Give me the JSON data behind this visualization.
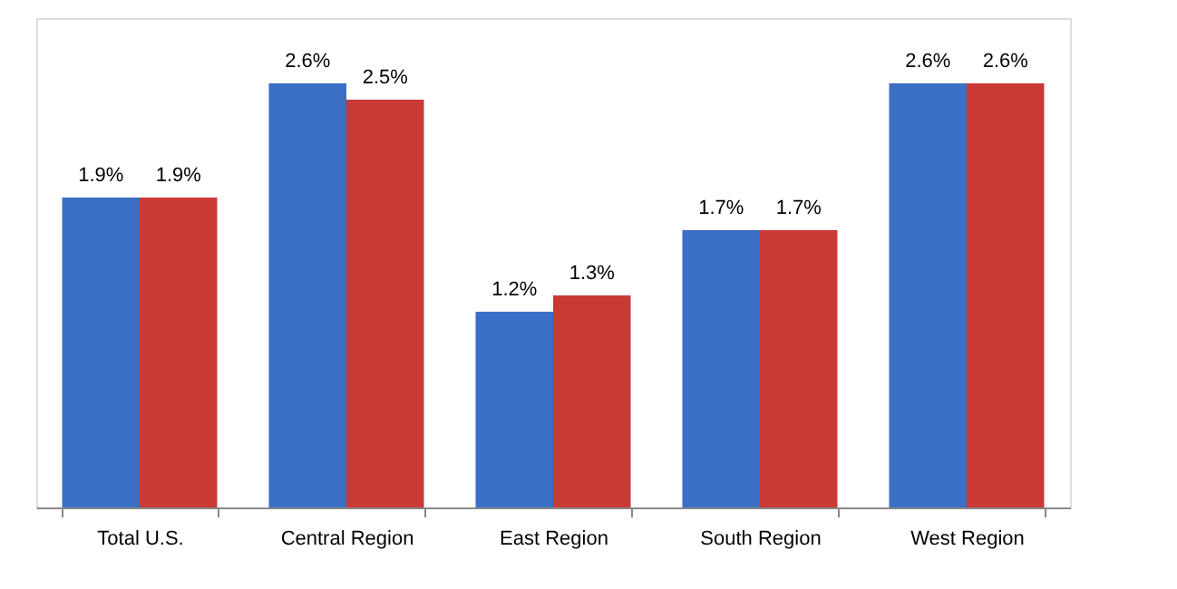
{
  "chart_data": {
    "type": "bar",
    "categories": [
      "Total U.S.",
      "Central Region",
      "East Region",
      "South Region",
      "West Region"
    ],
    "series": [
      {
        "color": "#3b6fc6",
        "values": [
          1.9,
          2.6,
          1.2,
          1.7,
          2.6
        ],
        "value_labels": [
          "1.9%",
          "2.6%",
          "1.2%",
          "1.7%",
          "2.6%"
        ]
      },
      {
        "color": "#c93a36",
        "values": [
          1.9,
          2.5,
          1.3,
          1.7,
          2.6
        ],
        "value_labels": [
          "1.9%",
          "2.5%",
          "1.3%",
          "1.7%",
          "2.6%"
        ]
      }
    ],
    "ylim": [
      0,
      3
    ],
    "tick_labels": "x",
    "grid": false,
    "legend": false
  }
}
